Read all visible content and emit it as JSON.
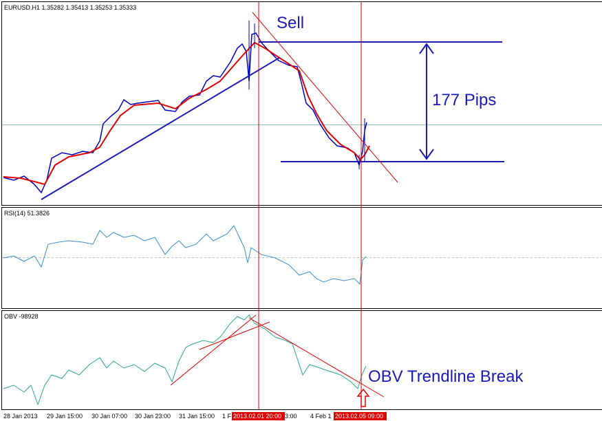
{
  "main_panel": {
    "header": "EURUSD.H1  1.35282 1.35413 1.35253 1.35333",
    "annotations": {
      "sell": "Sell",
      "pips": "177 Pips"
    }
  },
  "rsi_panel": {
    "header": "RSI(14) 51.3826"
  },
  "obv_panel": {
    "header": "OBV -98928",
    "annotation": "OBV Trendline Break"
  },
  "time_axis": {
    "labels": [
      "28 Jan 2013",
      "29 Jan 15:00",
      "30 Jan 07:00",
      "30 Jan 23:00",
      "31 Jan 15:00",
      "1 F",
      "3:00",
      "4 Feb 1"
    ],
    "highlighted": [
      "2013.02.01 20:00",
      "2013.02.05 09:00"
    ]
  }
}
